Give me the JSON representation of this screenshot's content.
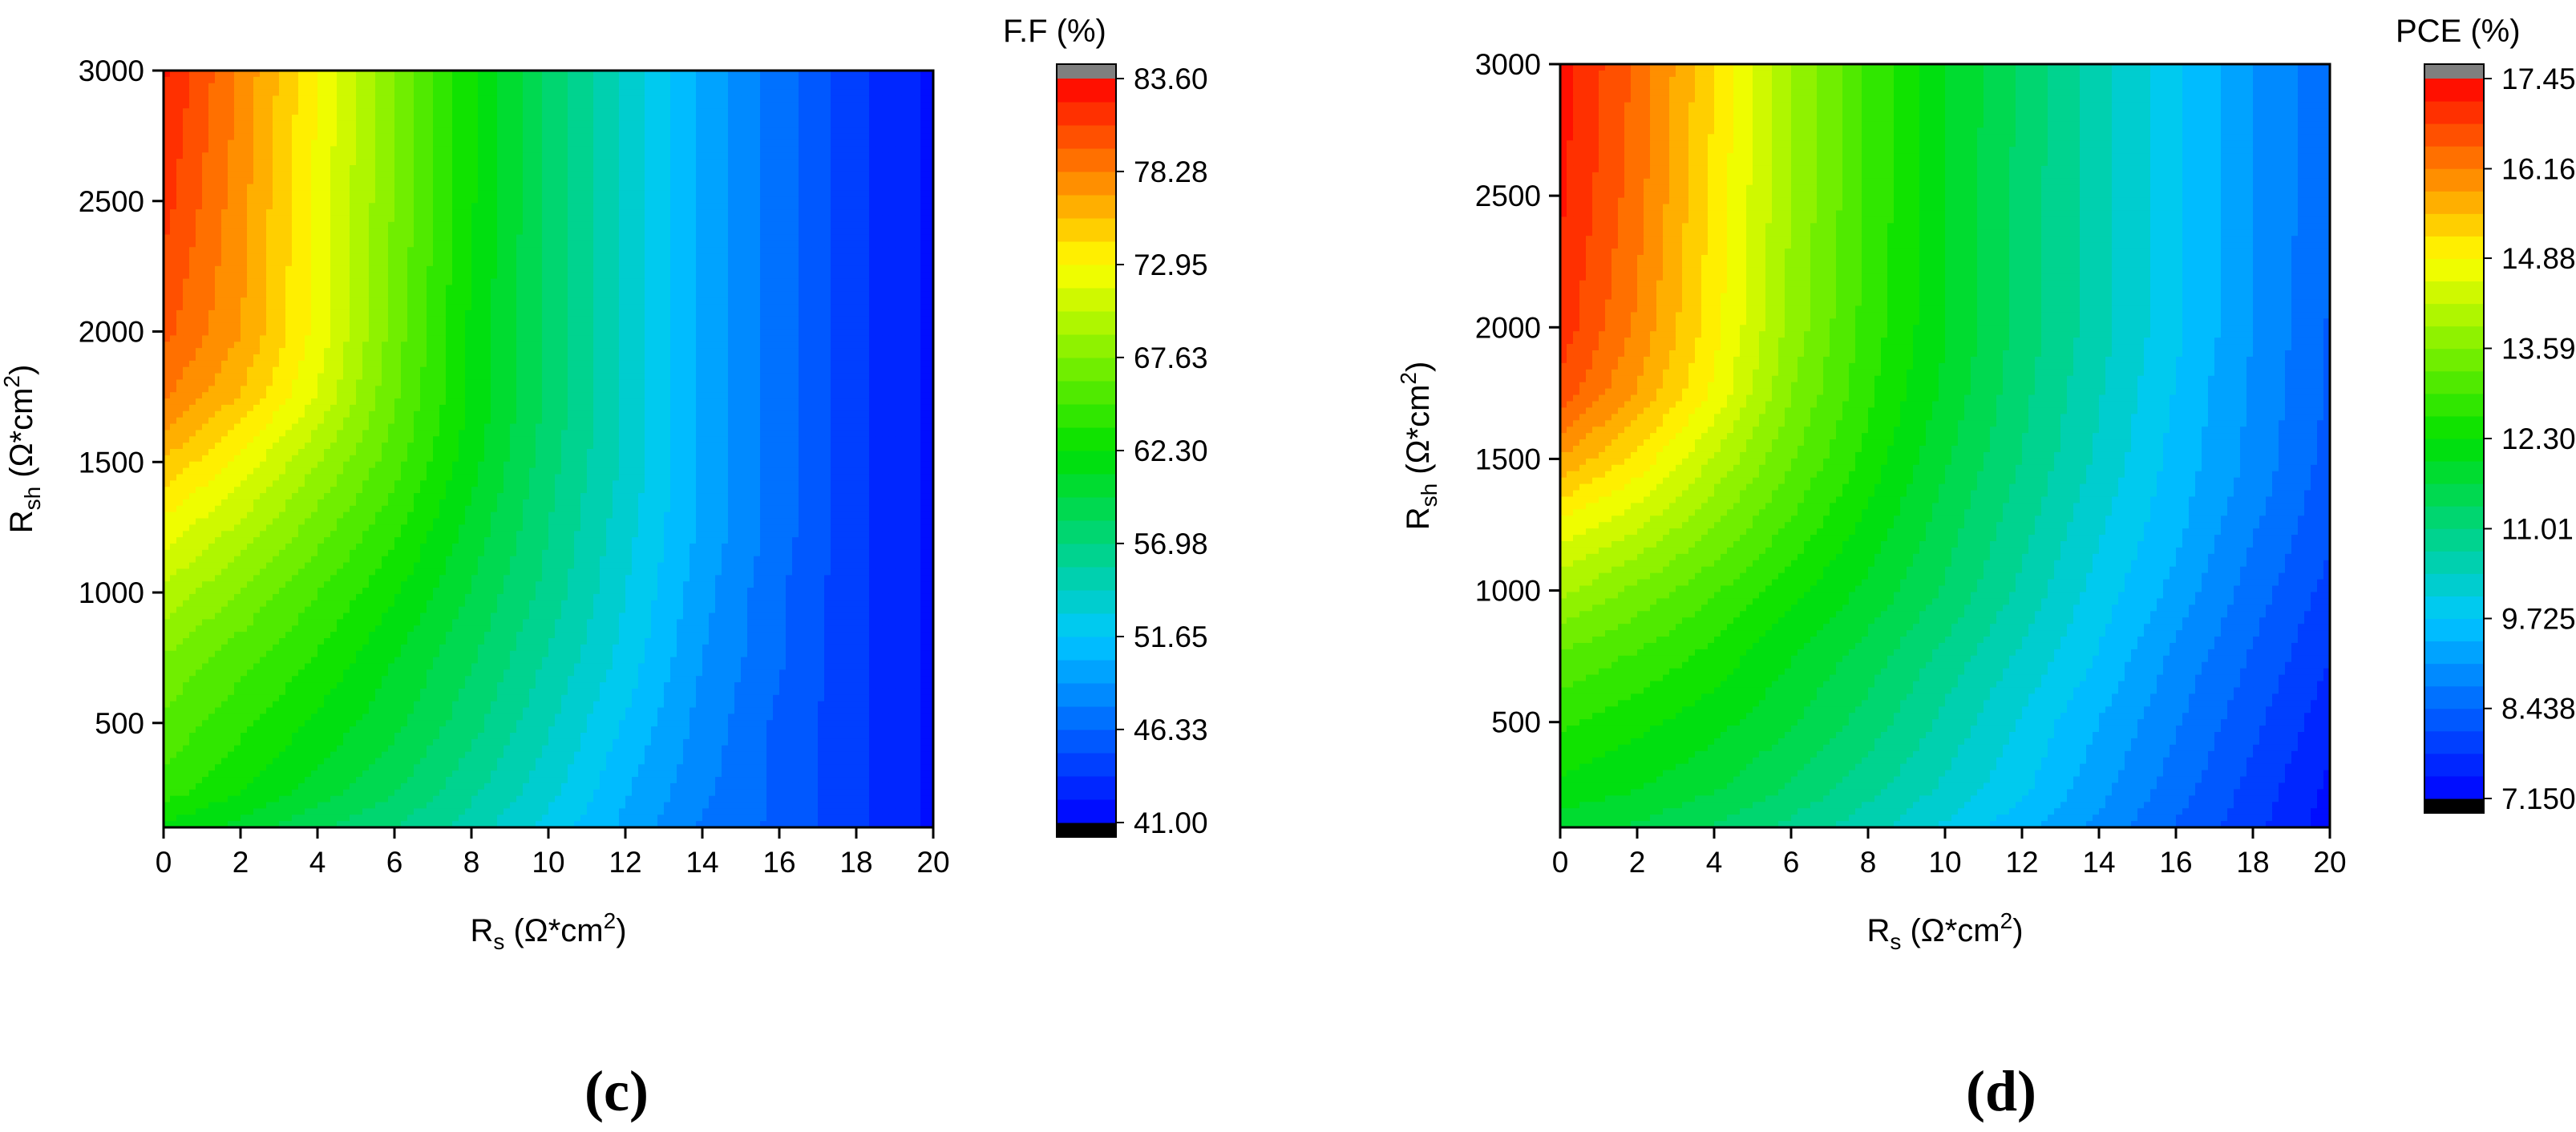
{
  "chart_data": [
    {
      "type": "heatmap",
      "panel_label": "(c)",
      "title": "",
      "colorbar_title": "F.F (%)",
      "xlabel": {
        "main": "R",
        "sub": "s",
        "unit_pre": " (Ω*cm",
        "sup": "2",
        "unit_post": ")"
      },
      "ylabel": {
        "main": "R",
        "sub": "sh",
        "unit_pre": " (Ω*cm",
        "sup": "2",
        "unit_post": ")"
      },
      "xlim": [
        0,
        20
      ],
      "ylim": [
        100,
        3000
      ],
      "x_ticks": [
        "0",
        "2",
        "4",
        "6",
        "8",
        "10",
        "12",
        "14",
        "16",
        "18",
        "20"
      ],
      "x_tick_values": [
        0,
        2,
        4,
        6,
        8,
        10,
        12,
        14,
        16,
        18,
        20
      ],
      "y_ticks": [
        "500",
        "1000",
        "1500",
        "2000",
        "2500",
        "3000"
      ],
      "y_tick_values": [
        500,
        1000,
        1500,
        2000,
        2500,
        3000
      ],
      "colorbar_range": [
        41.0,
        83.6
      ],
      "colorbar_ticks": [
        "41.00",
        "46.33",
        "51.65",
        "56.98",
        "62.30",
        "67.63",
        "72.95",
        "78.28",
        "83.60"
      ],
      "colorbar_tick_values": [
        41.0,
        46.33,
        51.65,
        56.98,
        62.3,
        67.63,
        72.95,
        78.28,
        83.6
      ],
      "rs_values": [
        0,
        2,
        4,
        6,
        8,
        10,
        12,
        14,
        16,
        18,
        20
      ],
      "rsh_values": [
        100,
        250,
        500,
        750,
        1000,
        1250,
        1500,
        1750,
        2000,
        2500,
        3000
      ],
      "values": [
        [
          62.0,
          60.5,
          58.5,
          57.0,
          55.0,
          52.5,
          50.0,
          47.5,
          46.0,
          44.0,
          42.0
        ],
        [
          64.5,
          62.5,
          60.5,
          58.5,
          56.0,
          53.5,
          50.5,
          48.0,
          46.0,
          44.0,
          42.0
        ],
        [
          66.0,
          64.0,
          62.0,
          60.0,
          57.5,
          54.5,
          51.5,
          48.5,
          46.0,
          44.0,
          42.0
        ],
        [
          67.5,
          65.5,
          63.5,
          61.0,
          58.5,
          55.5,
          52.5,
          49.0,
          46.5,
          44.0,
          42.0
        ],
        [
          70.0,
          67.5,
          65.0,
          62.5,
          59.5,
          56.5,
          53.0,
          49.5,
          46.5,
          44.0,
          42.0
        ],
        [
          72.5,
          70.0,
          67.0,
          64.0,
          60.5,
          57.0,
          53.5,
          50.0,
          47.0,
          44.0,
          42.0
        ],
        [
          75.5,
          72.5,
          69.0,
          65.5,
          61.5,
          57.5,
          54.0,
          50.0,
          47.0,
          44.0,
          42.0
        ],
        [
          78.5,
          75.5,
          71.5,
          66.5,
          62.0,
          58.0,
          54.0,
          50.0,
          47.0,
          44.0,
          42.0
        ],
        [
          80.0,
          77.0,
          72.5,
          67.0,
          62.0,
          58.0,
          54.0,
          50.0,
          47.0,
          44.0,
          42.0
        ],
        [
          81.5,
          77.5,
          72.5,
          67.5,
          62.5,
          58.0,
          54.0,
          50.0,
          47.0,
          44.0,
          42.0
        ],
        [
          82.5,
          78.0,
          73.0,
          67.5,
          62.5,
          58.0,
          54.0,
          50.0,
          47.0,
          44.0,
          42.0
        ]
      ]
    },
    {
      "type": "heatmap",
      "panel_label": "(d)",
      "title": "",
      "colorbar_title": "PCE (%)",
      "xlabel": {
        "main": "R",
        "sub": "s",
        "unit_pre": " (Ω*cm",
        "sup": "2",
        "unit_post": ")"
      },
      "ylabel": {
        "main": "R",
        "sub": "sh",
        "unit_pre": " (Ω*cm",
        "sup": "2",
        "unit_post": ")"
      },
      "xlim": [
        0,
        20
      ],
      "ylim": [
        100,
        3000
      ],
      "x_ticks": [
        "0",
        "2",
        "4",
        "6",
        "8",
        "10",
        "12",
        "14",
        "16",
        "18",
        "20"
      ],
      "x_tick_values": [
        0,
        2,
        4,
        6,
        8,
        10,
        12,
        14,
        16,
        18,
        20
      ],
      "y_ticks": [
        "500",
        "1000",
        "1500",
        "2000",
        "2500",
        "3000"
      ],
      "y_tick_values": [
        500,
        1000,
        1500,
        2000,
        2500,
        3000
      ],
      "colorbar_range": [
        7.15,
        17.45
      ],
      "colorbar_ticks": [
        "7.150",
        "8.438",
        "9.725",
        "11.01",
        "12.30",
        "13.59",
        "14.88",
        "16.16",
        "17.45"
      ],
      "colorbar_tick_values": [
        7.15,
        8.438,
        9.725,
        11.01,
        12.3,
        13.59,
        14.88,
        16.16,
        17.45
      ],
      "rs_values": [
        0,
        2,
        4,
        6,
        8,
        10,
        12,
        14,
        16,
        18,
        20
      ],
      "rsh_values": [
        100,
        250,
        500,
        750,
        1000,
        1250,
        1500,
        1750,
        2000,
        2500,
        3000
      ],
      "values": [
        [
          11.8,
          11.6,
          11.3,
          10.9,
          10.5,
          10.0,
          9.5,
          9.0,
          8.4,
          7.9,
          7.3
        ],
        [
          12.2,
          12.0,
          11.7,
          11.3,
          10.8,
          10.3,
          9.8,
          9.2,
          8.6,
          8.0,
          7.4
        ],
        [
          12.7,
          12.4,
          12.1,
          11.7,
          11.2,
          10.6,
          10.0,
          9.4,
          8.8,
          8.2,
          7.6
        ],
        [
          13.2,
          12.9,
          12.5,
          12.0,
          11.5,
          10.9,
          10.3,
          9.7,
          9.0,
          8.4,
          7.8
        ],
        [
          14.0,
          13.5,
          13.0,
          12.4,
          11.9,
          11.3,
          10.6,
          9.9,
          9.3,
          8.6,
          8.0
        ],
        [
          14.8,
          14.3,
          13.6,
          12.9,
          12.2,
          11.5,
          10.8,
          10.1,
          9.5,
          8.8,
          8.2
        ],
        [
          15.8,
          15.1,
          14.2,
          13.3,
          12.5,
          11.7,
          11.0,
          10.3,
          9.6,
          9.0,
          8.3
        ],
        [
          16.7,
          15.8,
          14.8,
          13.6,
          12.7,
          11.9,
          11.1,
          10.4,
          9.7,
          9.0,
          8.4
        ],
        [
          17.0,
          16.1,
          15.0,
          13.8,
          12.8,
          12.0,
          11.2,
          10.5,
          9.8,
          9.1,
          8.4
        ],
        [
          17.2,
          16.3,
          15.1,
          13.9,
          12.9,
          12.0,
          11.2,
          10.5,
          9.8,
          9.1,
          8.5
        ],
        [
          17.3,
          16.4,
          15.2,
          13.9,
          12.9,
          12.0,
          11.3,
          10.5,
          9.8,
          9.1,
          8.5
        ]
      ]
    }
  ]
}
